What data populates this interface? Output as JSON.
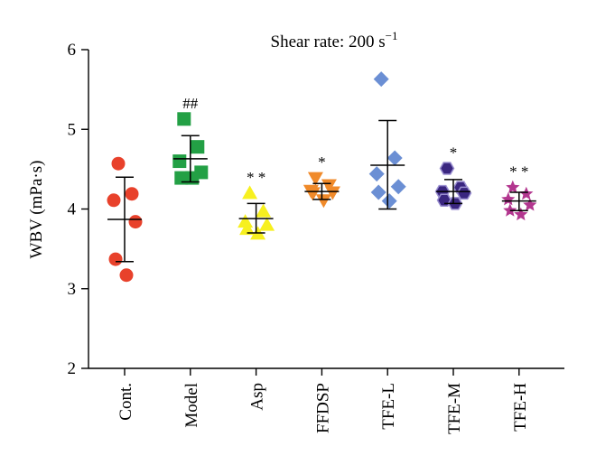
{
  "chart_data": {
    "type": "scatter",
    "title": "Shear rate: 200 s",
    "title_superscript": "−1",
    "ylabel": "WBV (mPa·s)",
    "xlabel": "",
    "ylim": [
      2,
      6
    ],
    "yticks": [
      "2",
      "3",
      "4",
      "5",
      "6"
    ],
    "categories": [
      "Cont.",
      "Model",
      "Asp",
      "FFDSP",
      "TFE-L",
      "TFE-M",
      "TFE-H"
    ],
    "series": [
      {
        "category": "Cont.",
        "marker": "circle",
        "color": "#e8412b",
        "points": [
          4.57,
          4.19,
          4.11,
          3.84,
          3.37,
          3.17
        ],
        "mean": 3.87,
        "sd_upper": 4.4,
        "sd_lower": 3.34,
        "significance": ""
      },
      {
        "category": "Model",
        "marker": "square",
        "color": "#23a045",
        "points": [
          5.13,
          4.78,
          4.6,
          4.46,
          4.39,
          4.39
        ],
        "mean": 4.63,
        "sd_upper": 4.92,
        "sd_lower": 4.34,
        "significance": "##"
      },
      {
        "category": "Asp",
        "marker": "triangle-up",
        "color": "#f7f01f",
        "points": [
          4.2,
          3.97,
          3.84,
          3.8,
          3.75,
          3.69
        ],
        "mean": 3.88,
        "sd_upper": 4.07,
        "sd_lower": 3.7,
        "significance": "* *"
      },
      {
        "category": "FFDSP",
        "marker": "triangle-down",
        "color": "#f08a2a",
        "points": [
          4.39,
          4.3,
          4.23,
          4.21,
          4.2,
          4.11
        ],
        "mean": 4.22,
        "sd_upper": 4.32,
        "sd_lower": 4.12,
        "significance": "*"
      },
      {
        "category": "TFE-L",
        "marker": "diamond",
        "color": "#6b8fd4",
        "points": [
          5.63,
          4.64,
          4.44,
          4.28,
          4.21,
          4.1
        ],
        "mean": 4.55,
        "sd_upper": 5.11,
        "sd_lower": 4.0,
        "significance": ""
      },
      {
        "category": "TFE-M",
        "marker": "hexagon",
        "color": "#3a2680",
        "points": [
          4.51,
          4.27,
          4.22,
          4.2,
          4.11,
          4.07
        ],
        "mean": 4.22,
        "sd_upper": 4.37,
        "sd_lower": 4.07,
        "significance": "*"
      },
      {
        "category": "TFE-H",
        "marker": "star",
        "color": "#b3368f",
        "points": [
          4.27,
          4.19,
          4.12,
          4.05,
          3.98,
          3.93
        ],
        "mean": 4.1,
        "sd_upper": 4.21,
        "sd_lower": 3.98,
        "significance": "* *"
      }
    ]
  }
}
